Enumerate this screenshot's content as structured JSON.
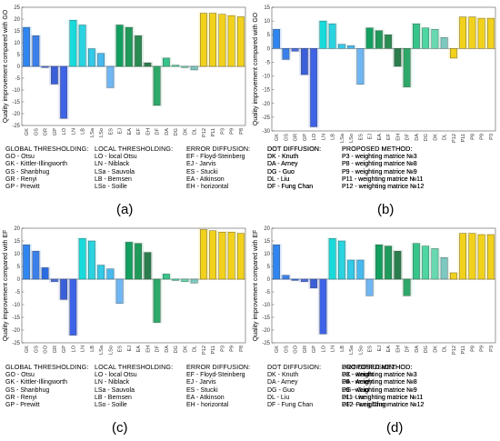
{
  "chart_data": [
    {
      "type": "bar",
      "panel_label": "(a)",
      "ylabel": "Quality improvement compared with GO",
      "ylim": [
        -25,
        25
      ],
      "yticks": [
        -25,
        -20,
        -15,
        -10,
        -5,
        0,
        5,
        10,
        15,
        20,
        25
      ],
      "categories": [
        "GK",
        "GS",
        "GR",
        "GP",
        "LO",
        "LN",
        "LB",
        "LSa",
        "LSo",
        "ES",
        "EJ",
        "EA",
        "EF",
        "EH",
        "DF",
        "DA",
        "DG",
        "DK",
        "DL",
        "P12",
        "P11",
        "P3",
        "P9",
        "P8"
      ],
      "values": [
        16.5,
        13.0,
        -0.5,
        -7.5,
        -22.0,
        19.5,
        17.5,
        7.5,
        5.5,
        -9.0,
        17.5,
        16.5,
        13.0,
        1.5,
        -16.5,
        3.5,
        0.5,
        -0.5,
        -1.5,
        22.5,
        22.5,
        22.0,
        21.5,
        21.0
      ],
      "colors": [
        "#2f86f0",
        "#3b7fe8",
        "#4a6ee0",
        "#3b5fd8",
        "#3e63e6",
        "#18dada",
        "#2ad3e0",
        "#33c9e8",
        "#46b9ee",
        "#6fb6f2",
        "#12a060",
        "#1f9a5a",
        "#2a8c52",
        "#2b7d4d",
        "#2ea868",
        "#35c48a",
        "#4ed6a0",
        "#68d8b0",
        "#7dc8c0",
        "#f2d11c",
        "#f2d11c",
        "#f2d11c",
        "#f2d11c",
        "#f2d11c"
      ],
      "legend": {
        "columns": [
          {
            "title": "GLOBAL THRESHOLDING:",
            "items": [
              "GO - Otsu",
              "GK - Kittler-Illingworth",
              "GS - Shanbhug",
              "GR - Renyi",
              "GP - Prewitt"
            ]
          },
          {
            "title": "LOCAL THRESHOLDING:",
            "items": [
              "LO - local Otsu",
              "LN - Niblack",
              "LSa - Sauvola",
              "LB - Bernsen",
              "LSo - Soille"
            ]
          },
          {
            "title": "ERROR DIFFUSION:",
            "items": [
              "EF - Floyd-Steinberg",
              "EJ - Jarvis",
              "ES - Stucki",
              "EA - Atkinson",
              "EH - horizontal"
            ]
          },
          {
            "title": "DOT DIFFUSION:",
            "items": [
              "DK - Knuth",
              "DA - Arney",
              "DG - Guo",
              "DL - Liu",
              "DF - Fung Chan"
            ]
          },
          {
            "title": "PROPOSED METHOD:",
            "items": [
              "P3 - weighting matrice №3",
              "P8 - weighting matrice №8",
              "P9 - weighting matrice №9",
              "P11 - weighting matrice №11",
              "P12 - weighting matrice №12"
            ]
          }
        ]
      }
    },
    {
      "type": "bar",
      "panel_label": "(b)",
      "ylabel": "Quality improvement compared with GO",
      "ylim": [
        -30,
        15
      ],
      "yticks": [
        -30,
        -25,
        -20,
        -15,
        -10,
        -5,
        0,
        5,
        10,
        15
      ],
      "categories": [
        "GK",
        "GS",
        "GR",
        "GP",
        "LO",
        "LN",
        "LB",
        "LSa",
        "LSo",
        "ES",
        "EJ",
        "EA",
        "EF",
        "EH",
        "DF",
        "DA",
        "DG",
        "DK",
        "DL",
        "P12",
        "P11",
        "P8",
        "P9",
        "P3"
      ],
      "values": [
        7.0,
        -4.0,
        -1.0,
        -9.5,
        -28.5,
        10.0,
        9.0,
        1.5,
        1.0,
        -13.0,
        7.5,
        6.5,
        5.0,
        -6.5,
        -14.0,
        9.0,
        7.5,
        7.0,
        4.0,
        -3.5,
        11.5,
        11.5,
        11.0,
        11.0
      ],
      "colors": [
        "#2f86f0",
        "#3b7fe8",
        "#4a6ee0",
        "#3b5fd8",
        "#3e63e6",
        "#18dada",
        "#2ad3e0",
        "#33c9e8",
        "#46b9ee",
        "#6fb6f2",
        "#12a060",
        "#1f9a5a",
        "#2a8c52",
        "#2b7d4d",
        "#2ea868",
        "#35c48a",
        "#4ed6a0",
        "#68d8b0",
        "#7dc8c0",
        "#f2d11c",
        "#f2d11c",
        "#f2d11c",
        "#f2d11c",
        "#f2d11c"
      ],
      "legend": {
        "columns": [
          {
            "title": "GLOBAL THRESHOLDING:",
            "items": []
          },
          {
            "title": "LOCAL THRESHOLDING:",
            "items": []
          },
          {
            "title": "ERROR DIFFUSION:",
            "items": []
          },
          {
            "title": "DOT DIFFUSION:",
            "items": [
              "DK - Knuth",
              "DA - Arney",
              "DG - Guo",
              "DL - Liu",
              "DF - Fung Chan"
            ]
          },
          {
            "title": "PROPOSED METHOD:",
            "items": [
              "P3 - weighting matrice №3",
              "P8 - weighting matrice №8",
              "P9 - weighting matrice №9",
              "P11 - weighting matrice №11",
              "P12 - weighting matrice №12"
            ]
          }
        ]
      }
    },
    {
      "type": "bar",
      "panel_label": "(c)",
      "ylabel": "Quality improvement compared with EF",
      "ylim": [
        -25,
        20
      ],
      "yticks": [
        -25,
        -20,
        -15,
        -10,
        -5,
        0,
        5,
        10,
        15,
        20
      ],
      "categories": [
        "GK",
        "GS",
        "GO",
        "GR",
        "GP",
        "LO",
        "LN",
        "LB",
        "LSa",
        "LSo",
        "ES",
        "EJ",
        "EA",
        "EH",
        "DF",
        "DA",
        "DG",
        "DK",
        "DL",
        "P12",
        "P11",
        "P3",
        "P9",
        "P8"
      ],
      "values": [
        13.5,
        11.0,
        4.5,
        -1.0,
        -8.0,
        -22.0,
        16.0,
        15.0,
        5.5,
        4.0,
        -9.5,
        14.5,
        14.0,
        10.5,
        -17.0,
        2.0,
        -0.5,
        -1.0,
        -1.5,
        19.5,
        19.0,
        18.5,
        18.5,
        18.0
      ],
      "colors": [
        "#2f86f0",
        "#3b7fe8",
        "#2b6be0",
        "#4a6ee0",
        "#3b5fd8",
        "#3e63e6",
        "#18dada",
        "#2ad3e0",
        "#33c9e8",
        "#46b9ee",
        "#6fb6f2",
        "#12a060",
        "#1f9a5a",
        "#2b7d4d",
        "#2ea868",
        "#35c48a",
        "#4ed6a0",
        "#68d8b0",
        "#7dc8c0",
        "#f2d11c",
        "#f2d11c",
        "#f2d11c",
        "#f2d11c",
        "#f2d11c"
      ],
      "legend": {
        "columns": [
          {
            "title": "GLOBAL THRESHOLDING:",
            "items": [
              "GO - Otsu",
              "GK - Kittler-Illingworth",
              "GS - Shanbhug",
              "GR - Renyi",
              "GP - Prewitt"
            ]
          },
          {
            "title": "LOCAL THRESHOLDING:",
            "items": [
              "LO - local Otsu",
              "LN - Niblack",
              "LSa - Sauvola",
              "LB - Bernsen",
              "LSo - Soille"
            ]
          },
          {
            "title": "ERROR DIFFUSION:",
            "items": [
              "EF - Floyd-Steinberg",
              "EJ - Jarvis",
              "ES - Stucki",
              "EA - Atkinson",
              "EH - horizontal"
            ]
          },
          {
            "title": "DOT DIFFUSION:",
            "items": [
              "DK - Knuth",
              "DA - Arney",
              "DG - Guo",
              "DL - Liu",
              "DF - Fung Chan"
            ]
          },
          {
            "title": "PROPOSED METHOD:",
            "items": [
              "P3 - weighting matrice №3",
              "P8 - weighting matrice №8",
              "P9 - weighting matrice №9",
              "P11 - weighting matrice №11",
              "P12 - weighting matrice №12"
            ]
          }
        ]
      }
    },
    {
      "type": "bar",
      "panel_label": "(d)",
      "ylabel": "Quality improvement compared with EF",
      "ylim": [
        -25,
        20
      ],
      "yticks": [
        -25,
        -20,
        -15,
        -10,
        -5,
        0,
        5,
        10,
        15,
        20
      ],
      "categories": [
        "GK",
        "GS",
        "GO",
        "GR",
        "GP",
        "LO",
        "LN",
        "LB",
        "LSa",
        "LSo",
        "ES",
        "EJ",
        "EA",
        "EH",
        "DF",
        "DA",
        "DG",
        "DK",
        "DL",
        "P12",
        "P11",
        "P8",
        "P9",
        "P3"
      ],
      "values": [
        13.5,
        1.5,
        -0.5,
        -1.0,
        -3.5,
        -21.5,
        16.0,
        15.0,
        7.5,
        7.5,
        -6.5,
        13.5,
        13.0,
        11.0,
        -6.5,
        14.0,
        13.0,
        12.0,
        8.5,
        2.5,
        18.0,
        18.0,
        17.5,
        17.5
      ],
      "colors": [
        "#2f86f0",
        "#3b7fe8",
        "#2b6be0",
        "#4a6ee0",
        "#3b5fd8",
        "#3e63e6",
        "#18dada",
        "#2ad3e0",
        "#33c9e8",
        "#46b9ee",
        "#6fb6f2",
        "#12a060",
        "#1f9a5a",
        "#2b7d4d",
        "#2ea868",
        "#35c48a",
        "#4ed6a0",
        "#68d8b0",
        "#7dc8c0",
        "#f2d11c",
        "#f2d11c",
        "#f2d11c",
        "#f2d11c",
        "#f2d11c"
      ],
      "legend": {
        "columns": [
          {
            "title": "GLOBAL THRESHOLDING:",
            "items": []
          },
          {
            "title": "LOCAL THRESHOLDING:",
            "items": []
          },
          {
            "title": "ERROR DIFFUSION:",
            "items": []
          },
          {
            "title": "DOT DIFFUSION:",
            "items": [
              "DK - Knuth",
              "DA - Arney",
              "DG - Guo",
              "DL - Liu",
              "DF - Fung Chan"
            ]
          },
          {
            "title": "PROPOSED METHOD:",
            "items": [
              "P3 - weighting matrice №3",
              "P8 - weighting matrice №8",
              "P9 - weighting matrice №9",
              "P11 - weighting matrice №11",
              "P12 - weighting matrice №12"
            ]
          }
        ]
      }
    }
  ]
}
